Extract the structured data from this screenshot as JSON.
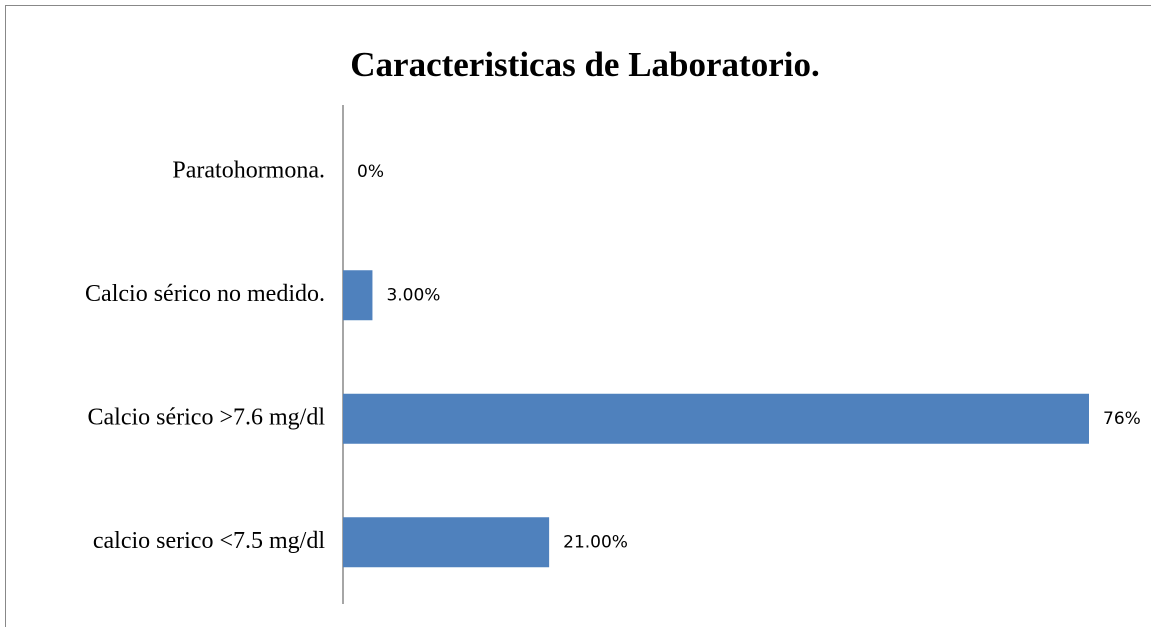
{
  "chart_data": {
    "type": "bar",
    "orientation": "horizontal",
    "title": "Caracteristicas de Laboratorio.",
    "categories": [
      "Paratohormona.",
      "Calcio sérico no medido.",
      "Calcio sérico >7.6 mg/dl",
      "calcio serico <7.5 mg/dl"
    ],
    "values": [
      0,
      3,
      76,
      21
    ],
    "value_labels": [
      "0%",
      "3.00%",
      "76%",
      "21.00%"
    ],
    "color": "#4f81bd"
  }
}
